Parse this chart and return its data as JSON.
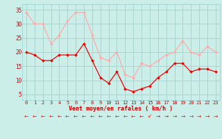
{
  "hours": [
    0,
    1,
    2,
    3,
    4,
    5,
    6,
    7,
    8,
    9,
    10,
    11,
    12,
    13,
    14,
    15,
    16,
    17,
    18,
    19,
    20,
    21,
    22,
    23
  ],
  "wind_avg": [
    20,
    19,
    17,
    17,
    19,
    19,
    19,
    23,
    17,
    11,
    9,
    13,
    7,
    6,
    7,
    8,
    11,
    13,
    16,
    16,
    13,
    14,
    14,
    13
  ],
  "wind_gust": [
    34,
    30,
    30,
    23,
    26,
    31,
    34,
    34,
    26,
    18,
    17,
    20,
    12,
    11,
    16,
    15,
    17,
    19,
    20,
    24,
    20,
    19,
    22,
    20
  ],
  "bg_color": "#cceee8",
  "grid_color": "#aad4ce",
  "avg_color": "#ee0000",
  "gust_color": "#ffaaaa",
  "xlabel": "Vent moyen/en rafales ( km/h )",
  "yticks": [
    5,
    10,
    15,
    20,
    25,
    30,
    35
  ],
  "ylim": [
    3,
    37
  ],
  "xlim": [
    -0.5,
    23.5
  ],
  "arrow_chars": [
    "←",
    "←",
    "←",
    "←",
    "←",
    "←",
    "←",
    "←",
    "←",
    "←",
    "←",
    "←",
    "←",
    "←",
    "←",
    "↙",
    "→",
    "→",
    "→",
    "→",
    "→",
    "→",
    "→",
    "→"
  ]
}
